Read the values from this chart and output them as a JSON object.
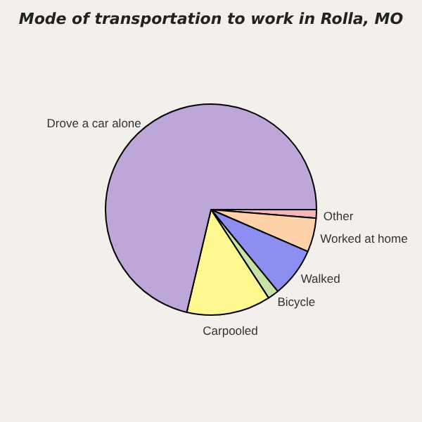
{
  "chart_data": {
    "type": "pie",
    "title": "Mode of transportation to work in Rolla, MO",
    "categories": [
      "Other",
      "Worked at home",
      "Walked",
      "Bicycle",
      "Carpooled",
      "Drove a car alone"
    ],
    "values": [
      1.3,
      5.2,
      7.6,
      1.7,
      12.9,
      71.3
    ],
    "colors": [
      "#f8b4bc",
      "#ffd1a8",
      "#8c8ff0",
      "#c6e2a6",
      "#fff890",
      "#bfa6d8"
    ]
  }
}
